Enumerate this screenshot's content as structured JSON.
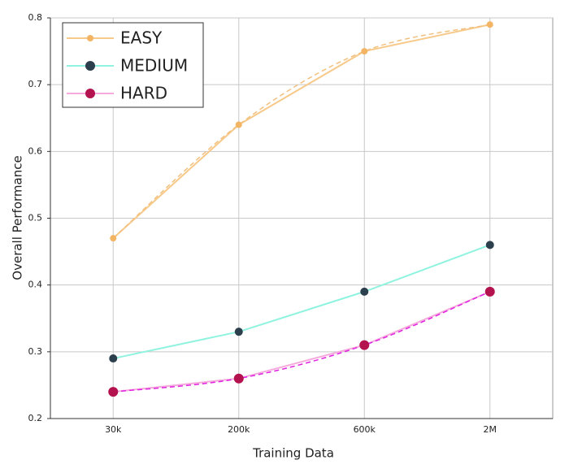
{
  "chart_data": {
    "type": "line",
    "xlabel": "Training Data",
    "ylabel": "Overall Performance",
    "categories": [
      "30k",
      "200k",
      "600k",
      "2M"
    ],
    "series": [
      {
        "name": "EASY",
        "color": "#f7c98a",
        "marker_color": "#f3b463",
        "trend_color": "#f2c07e",
        "values": [
          0.47,
          0.64,
          0.75,
          0.79
        ]
      },
      {
        "name": "MEDIUM",
        "color": "#8ff3df",
        "marker_color": "#2b3f4c",
        "values": [
          0.29,
          0.33,
          0.39,
          0.46
        ]
      },
      {
        "name": "HARD",
        "color": "#f5a9dc",
        "marker_color": "#b3124f",
        "trend_color": "#e022e0",
        "values": [
          0.24,
          0.26,
          0.31,
          0.39
        ]
      }
    ],
    "ylim": [
      0.2,
      0.8
    ],
    "yticks": [
      0.2,
      0.3,
      0.4,
      0.5,
      0.6,
      0.7,
      0.8
    ],
    "grid": true
  }
}
